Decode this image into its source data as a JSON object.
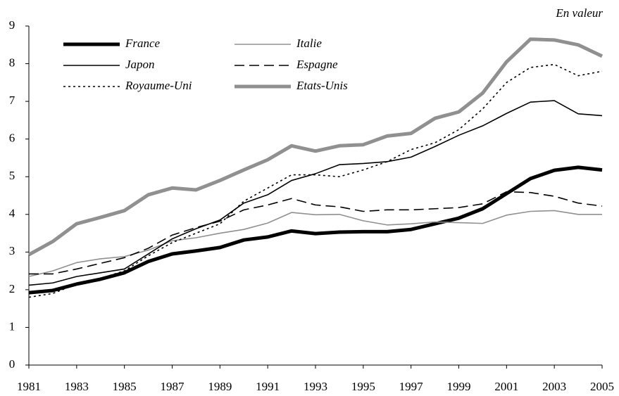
{
  "chart_data": {
    "type": "line",
    "annotation": "En valeur",
    "x": [
      1981,
      1982,
      1983,
      1984,
      1985,
      1986,
      1987,
      1988,
      1989,
      1990,
      1991,
      1992,
      1993,
      1994,
      1995,
      1996,
      1997,
      1998,
      1999,
      2000,
      2001,
      2002,
      2003,
      2004,
      2005
    ],
    "xlim": [
      1981,
      2005
    ],
    "xticks": [
      1981,
      1983,
      1985,
      1987,
      1989,
      1991,
      1993,
      1995,
      1997,
      1999,
      2001,
      2003,
      2005
    ],
    "ylim": [
      0,
      9
    ],
    "yticks": [
      0,
      1,
      2,
      3,
      4,
      5,
      6,
      7,
      8,
      9
    ],
    "grid": false,
    "series": [
      {
        "name": "France",
        "color": "#000000",
        "weight": "thick",
        "dash": "solid",
        "values": [
          1.92,
          1.98,
          2.15,
          2.28,
          2.45,
          2.75,
          2.95,
          3.03,
          3.12,
          3.32,
          3.4,
          3.56,
          3.49,
          3.53,
          3.54,
          3.54,
          3.6,
          3.75,
          3.9,
          4.15,
          4.55,
          4.95,
          5.17,
          5.25,
          5.18
        ]
      },
      {
        "name": "Italie",
        "color": "#909090",
        "weight": "thin",
        "dash": "solid",
        "values": [
          2.35,
          2.5,
          2.72,
          2.82,
          2.88,
          3.05,
          3.3,
          3.38,
          3.5,
          3.6,
          3.77,
          4.05,
          3.99,
          4.0,
          3.83,
          3.72,
          3.75,
          3.8,
          3.78,
          3.76,
          3.98,
          4.08,
          4.1,
          4.0,
          4.0
        ]
      },
      {
        "name": "Japon",
        "color": "#000000",
        "weight": "thin",
        "dash": "solid",
        "values": [
          2.12,
          2.18,
          2.35,
          2.45,
          2.55,
          2.95,
          3.35,
          3.62,
          3.85,
          4.3,
          4.52,
          4.9,
          5.08,
          5.32,
          5.35,
          5.4,
          5.52,
          5.8,
          6.1,
          6.35,
          6.68,
          6.98,
          7.02,
          6.67,
          6.62
        ]
      },
      {
        "name": "Espagne",
        "color": "#000000",
        "weight": "thin",
        "dash": "dashed",
        "values": [
          2.42,
          2.42,
          2.55,
          2.7,
          2.85,
          3.1,
          3.45,
          3.65,
          3.82,
          4.12,
          4.25,
          4.42,
          4.25,
          4.2,
          4.08,
          4.12,
          4.12,
          4.15,
          4.18,
          4.28,
          4.6,
          4.58,
          4.48,
          4.3,
          4.22
        ]
      },
      {
        "name": "Royaume-Uni",
        "color": "#000000",
        "weight": "thin",
        "dash": "dotted",
        "values": [
          1.8,
          1.9,
          2.15,
          2.3,
          2.5,
          2.9,
          3.25,
          3.5,
          3.75,
          4.35,
          4.7,
          5.05,
          5.05,
          5.0,
          5.18,
          5.4,
          5.72,
          5.9,
          6.25,
          6.8,
          7.5,
          7.9,
          7.98,
          7.68,
          7.8
        ]
      },
      {
        "name": "Etats-Unis",
        "color": "#909090",
        "weight": "thick",
        "dash": "solid",
        "values": [
          2.93,
          3.28,
          3.75,
          3.92,
          4.1,
          4.52,
          4.7,
          4.65,
          4.9,
          5.18,
          5.45,
          5.82,
          5.68,
          5.82,
          5.85,
          6.08,
          6.15,
          6.55,
          6.72,
          7.22,
          8.05,
          8.65,
          8.63,
          8.5,
          8.2
        ]
      }
    ]
  }
}
